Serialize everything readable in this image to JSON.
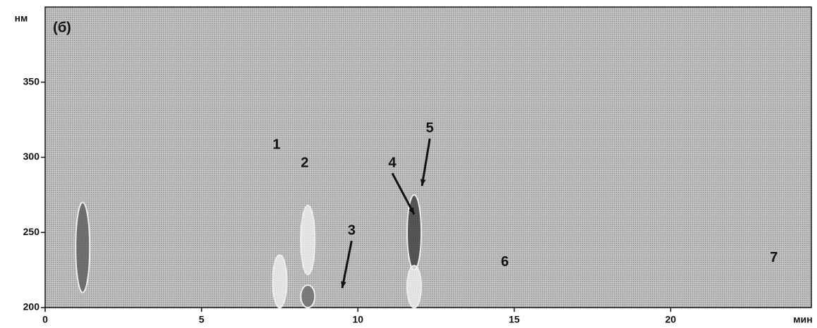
{
  "chart_data": {
    "type": "heatmap",
    "panel_label": "(б)",
    "y_label": "нм",
    "x_label": "мин",
    "xlim": [
      0,
      24.5
    ],
    "ylim": [
      200,
      400
    ],
    "xticks": [
      0,
      5,
      10,
      15,
      20
    ],
    "yticks": [
      200,
      250,
      300,
      350
    ],
    "bands": [
      {
        "x": 1.2,
        "y": [
          210,
          270
        ],
        "color": "#555555"
      },
      {
        "x": 7.5,
        "y": [
          200,
          235
        ],
        "color": "#f2f2f2"
      },
      {
        "x": 8.4,
        "y": [
          222,
          268
        ],
        "color": "#f2f2f2"
      },
      {
        "x": 8.4,
        "y": [
          200,
          215
        ],
        "color": "#666666"
      },
      {
        "x": 11.8,
        "y": [
          225,
          275
        ],
        "color": "#333333"
      },
      {
        "x": 11.8,
        "y": [
          200,
          228
        ],
        "color": "#f2f2f2"
      }
    ],
    "annotations": [
      {
        "text": "1",
        "x": 7.4,
        "y": 308
      },
      {
        "text": "2",
        "x": 8.3,
        "y": 296
      },
      {
        "text": "3",
        "x": 9.8,
        "y": 251,
        "arrow_to": [
          9.5,
          213
        ]
      },
      {
        "text": "4",
        "x": 11.1,
        "y": 296,
        "arrow_to": [
          11.8,
          262
        ]
      },
      {
        "text": "5",
        "x": 12.3,
        "y": 319,
        "arrow_to": [
          12.05,
          281
        ]
      },
      {
        "text": "6",
        "x": 14.7,
        "y": 230
      },
      {
        "text": "7",
        "x": 23.3,
        "y": 233
      }
    ]
  }
}
